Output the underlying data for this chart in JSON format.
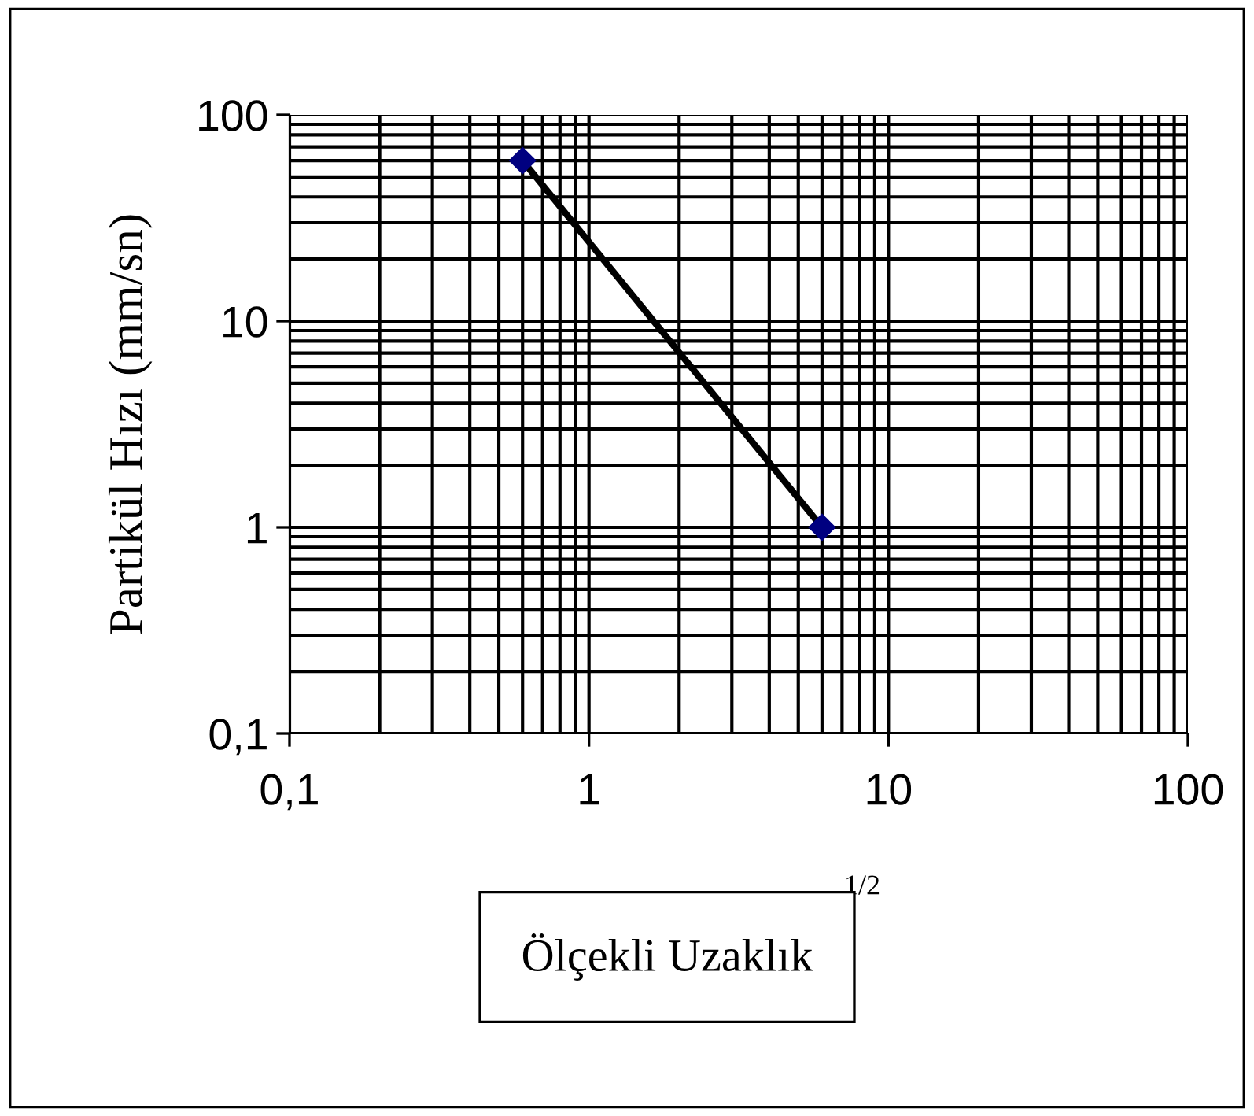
{
  "chart_data": {
    "type": "line",
    "xlabel": "Ölçekli Uzaklık",
    "ylabel": "Partikül Hızı (mm/sn)",
    "annotations": [
      "1/2"
    ],
    "x": [
      0.6,
      6
    ],
    "series": [
      {
        "color": "#000080",
        "values": [
          60,
          1
        ]
      }
    ],
    "marker": "diamond",
    "line_style": "solid",
    "log": "xy",
    "grid": true,
    "xlim": [
      0.1,
      100
    ],
    "xticks": [
      {
        "value": 0.1,
        "label": "0,1"
      },
      1,
      10,
      100
    ],
    "ylim": [
      0.1,
      100
    ],
    "yticks": [
      {
        "value": 0.1,
        "label": "0,1"
      },
      1,
      10,
      100
    ]
  }
}
